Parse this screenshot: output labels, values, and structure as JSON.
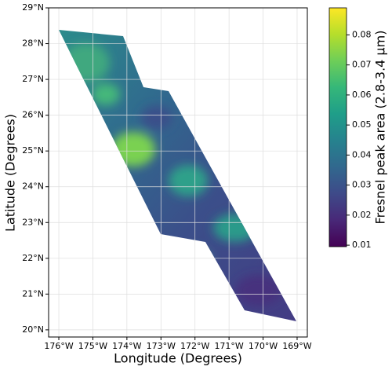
{
  "chart_data": {
    "type": "map",
    "x_label": "Longitude (Degrees)",
    "y_label": "Latitude (Degrees)",
    "xlim": [
      -176.3,
      -168.7
    ],
    "ylim": [
      19.8,
      29
    ],
    "xticks": [
      {
        "value": -176,
        "label": "176°W"
      },
      {
        "value": -175,
        "label": "175°W"
      },
      {
        "value": -174,
        "label": "174°W"
      },
      {
        "value": -173,
        "label": "173°W"
      },
      {
        "value": -172,
        "label": "172°W"
      },
      {
        "value": -171,
        "label": "171°W"
      },
      {
        "value": -170,
        "label": "170°W"
      },
      {
        "value": -169,
        "label": "169°W"
      }
    ],
    "yticks": [
      {
        "value": 20,
        "label": "20°N"
      },
      {
        "value": 21,
        "label": "21°N"
      },
      {
        "value": 22,
        "label": "22°N"
      },
      {
        "value": 23,
        "label": "23°N"
      },
      {
        "value": 24,
        "label": "24°N"
      },
      {
        "value": 25,
        "label": "25°N"
      },
      {
        "value": 26,
        "label": "26°N"
      },
      {
        "value": 27,
        "label": "27°N"
      },
      {
        "value": 28,
        "label": "28°N"
      },
      {
        "value": 29,
        "label": "29°N"
      }
    ],
    "grid": true,
    "colorbar": {
      "label": "Fresnel peak area (2.8-3.4 µm)",
      "colormap": "viridis",
      "lim": [
        0.0095,
        0.089
      ],
      "ticks": [
        0.01,
        0.02,
        0.03,
        0.04,
        0.05,
        0.06,
        0.07,
        0.08
      ]
    }
  }
}
